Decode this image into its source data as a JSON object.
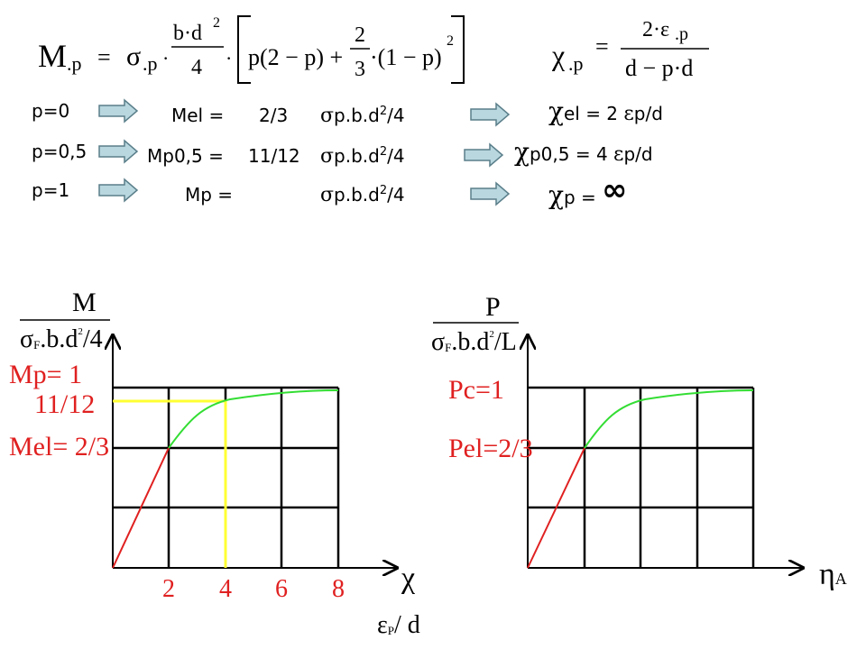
{
  "formula_moment": {
    "lhs": "M",
    "lhs_sub": ".p",
    "eq": "=",
    "sigma": "σ",
    "sigma_sub": ".p",
    "dot1": "·",
    "numerator": "b·d",
    "num_exp": "2",
    "denominator": "4",
    "dot2": "·",
    "term1": "p(2 − p) +",
    "frac_num": "2",
    "frac_den": "3",
    "term2": "·(1 − p)",
    "term2_exp": "2"
  },
  "formula_curvature": {
    "lhs": "χ",
    "lhs_sub": ".p",
    "eq": "=",
    "numerator": "2·ε",
    "num_sub": ".p",
    "denominator": "d − p·d"
  },
  "cases": [
    {
      "condition": "p=0",
      "moment": "Mel =",
      "coefficient": "2/3",
      "stress": "σ",
      "expr": "p.b.d",
      "exp": "2",
      "tail": "/4",
      "curv_symbol": "χ",
      "curv_text": "el = 2 ",
      "strain": "ε",
      "curv_tail": "p/d"
    },
    {
      "condition": "p=0,5",
      "moment": "Mp0,5 =",
      "coefficient": "11/12",
      "stress": "σ",
      "expr": "p.b.d",
      "exp": "2",
      "tail": "/4",
      "curv_symbol": "χ",
      "curv_text": "p0,5 = 4 ",
      "strain": "ε",
      "curv_tail": "p/d"
    },
    {
      "condition": "p=1",
      "moment": "Mp =",
      "stress": "σ",
      "expr": "p.b.d",
      "exp": "2",
      "tail": "/4",
      "curv_symbol": "χ",
      "curv_text": "p = ",
      "curv_value": "∞"
    }
  ],
  "left_plot": {
    "y_label": {
      "top": "M",
      "sigma": "σ",
      "sub": "F",
      "text": ".b.d",
      "exp": "2",
      "tail": "/4"
    },
    "levels": [
      "Mp= 1",
      "11/12",
      "Mel= 2/3"
    ],
    "x_ticks": [
      "2",
      "4",
      "6",
      "8"
    ],
    "x_label": {
      "top": "χ",
      "eps": "ε",
      "sub": "P",
      "tail": "/ d"
    }
  },
  "right_plot": {
    "y_label": {
      "top": "P",
      "sigma": "σ",
      "sub": "F",
      "text": ".b.d",
      "exp": "2",
      "tail": "/L"
    },
    "levels": [
      "Pc=1",
      "Pel=2/3"
    ],
    "x_label": {
      "symbol": "η",
      "sub": "A"
    }
  }
}
